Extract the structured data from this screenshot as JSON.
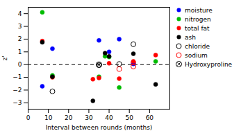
{
  "chart_data": {
    "type": "scatter",
    "title": "",
    "xlabel": "Interval between rounds (months)",
    "ylabel": "z'",
    "xlim": [
      0,
      70
    ],
    "ylim": [
      -3.5,
      4.5
    ],
    "xticks": [
      0,
      10,
      20,
      30,
      40,
      50,
      60
    ],
    "yticks": [
      -3,
      -2,
      -1,
      0,
      1,
      2,
      3,
      4
    ],
    "grid": false,
    "legend": "upper right",
    "reference_lines": [
      {
        "y": 0,
        "line_style": "dashed",
        "color": "#000000"
      }
    ],
    "series": [
      {
        "name": "moisture",
        "color": "#0000ff",
        "marker": "circle",
        "x": [
          7,
          12,
          35,
          40,
          45,
          52
        ],
        "values": [
          -1.7,
          1.25,
          1.9,
          1.0,
          2.0,
          0.05
        ]
      },
      {
        "name": "nitrogen",
        "color": "#00bb00",
        "marker": "circle",
        "x": [
          7,
          12,
          35,
          38,
          40,
          45,
          63
        ],
        "values": [
          4.1,
          -0.85,
          -0.95,
          0.65,
          0.6,
          -1.8,
          0.25
        ]
      },
      {
        "name": "total fat",
        "color": "#ff0000",
        "marker": "circle",
        "x": [
          7,
          12,
          32,
          35,
          40,
          45,
          52,
          63
        ],
        "values": [
          1.85,
          -1.0,
          -1.15,
          -1.05,
          0.1,
          -1.1,
          0.25,
          0.75
        ]
      },
      {
        "name": "ash",
        "color": "#000000",
        "marker": "circle",
        "x": [
          7,
          12,
          32,
          38,
          40,
          52,
          63
        ],
        "values": [
          1.75,
          -0.95,
          -2.85,
          0.9,
          0.65,
          0.85,
          -1.55
        ]
      },
      {
        "name": "chloride",
        "color": "#000000",
        "marker": "open_circle",
        "x": [
          12,
          35,
          45,
          52
        ],
        "values": [
          -2.1,
          -0.05,
          0.05,
          1.6
        ]
      },
      {
        "name": "sodium",
        "color": "#ff0000",
        "marker": "open_circle",
        "x": [
          45,
          52,
          52
        ],
        "values": [
          -0.35,
          0.15,
          -0.15
        ]
      },
      {
        "name": "Hydroxyproline",
        "color": "#000000",
        "marker": "circled_x",
        "x": [
          35
        ],
        "values": [
          0.0
        ]
      }
    ]
  }
}
